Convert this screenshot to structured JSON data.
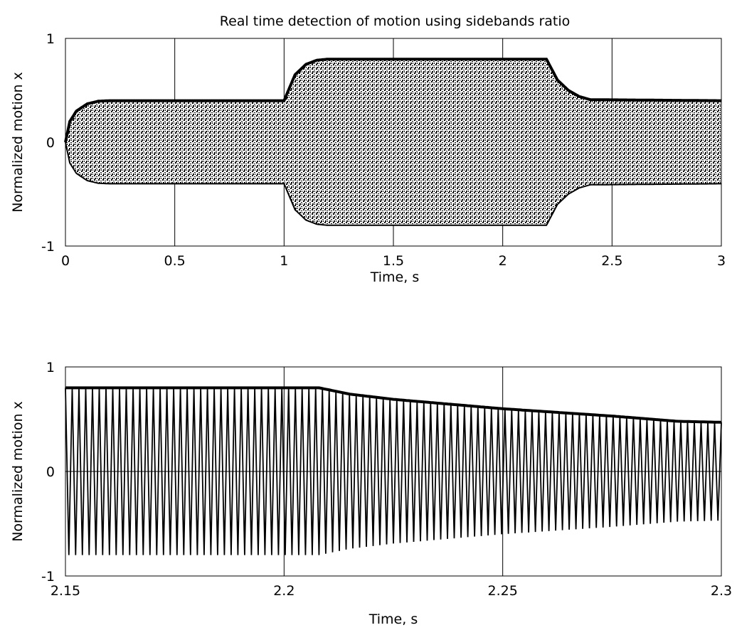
{
  "chart_data": [
    {
      "type": "line",
      "title": "Real time detection of motion using sidebands ratio",
      "xlabel": "Time, s",
      "ylabel": "Normalized motion x",
      "xlim": [
        0,
        3
      ],
      "ylim": [
        -1,
        1
      ],
      "xticks": [
        "0",
        "0.5",
        "1",
        "1.5",
        "2",
        "2.5",
        "3"
      ],
      "yticks": [
        "-1",
        "0",
        "1"
      ],
      "grid": true,
      "signal": "dense oscillation filling the envelope",
      "envelope": {
        "x": [
          0,
          0.02,
          0.05,
          0.1,
          0.15,
          0.2,
          1.0,
          1.02,
          1.05,
          1.1,
          1.15,
          1.2,
          2.2,
          2.22,
          2.25,
          2.3,
          2.35,
          2.4,
          3.0
        ],
        "upper": [
          0,
          0.2,
          0.3,
          0.37,
          0.395,
          0.4,
          0.4,
          0.5,
          0.65,
          0.75,
          0.79,
          0.8,
          0.8,
          0.72,
          0.6,
          0.5,
          0.44,
          0.41,
          0.4
        ],
        "lower": [
          0,
          -0.2,
          -0.3,
          -0.37,
          -0.395,
          -0.4,
          -0.4,
          -0.5,
          -0.65,
          -0.75,
          -0.79,
          -0.8,
          -0.8,
          -0.72,
          -0.6,
          -0.5,
          -0.44,
          -0.41,
          -0.4
        ]
      }
    },
    {
      "type": "line",
      "title": "",
      "xlabel": "Time, s",
      "ylabel": "Normalized motion x",
      "xlim": [
        2.15,
        2.3
      ],
      "ylim": [
        -1,
        1
      ],
      "xticks": [
        "2.15",
        "2.2",
        "2.25",
        "2.3"
      ],
      "yticks": [
        "-1",
        "0",
        "1"
      ],
      "grid": true,
      "cycles": 97,
      "envelope": {
        "x": [
          2.15,
          2.208,
          2.215,
          2.225,
          2.25,
          2.275,
          2.29,
          2.3
        ],
        "upper": [
          0.8,
          0.8,
          0.74,
          0.69,
          0.6,
          0.53,
          0.48,
          0.47
        ],
        "lower": [
          -0.8,
          -0.8,
          -0.74,
          -0.69,
          -0.6,
          -0.53,
          -0.48,
          -0.47
        ]
      }
    }
  ]
}
